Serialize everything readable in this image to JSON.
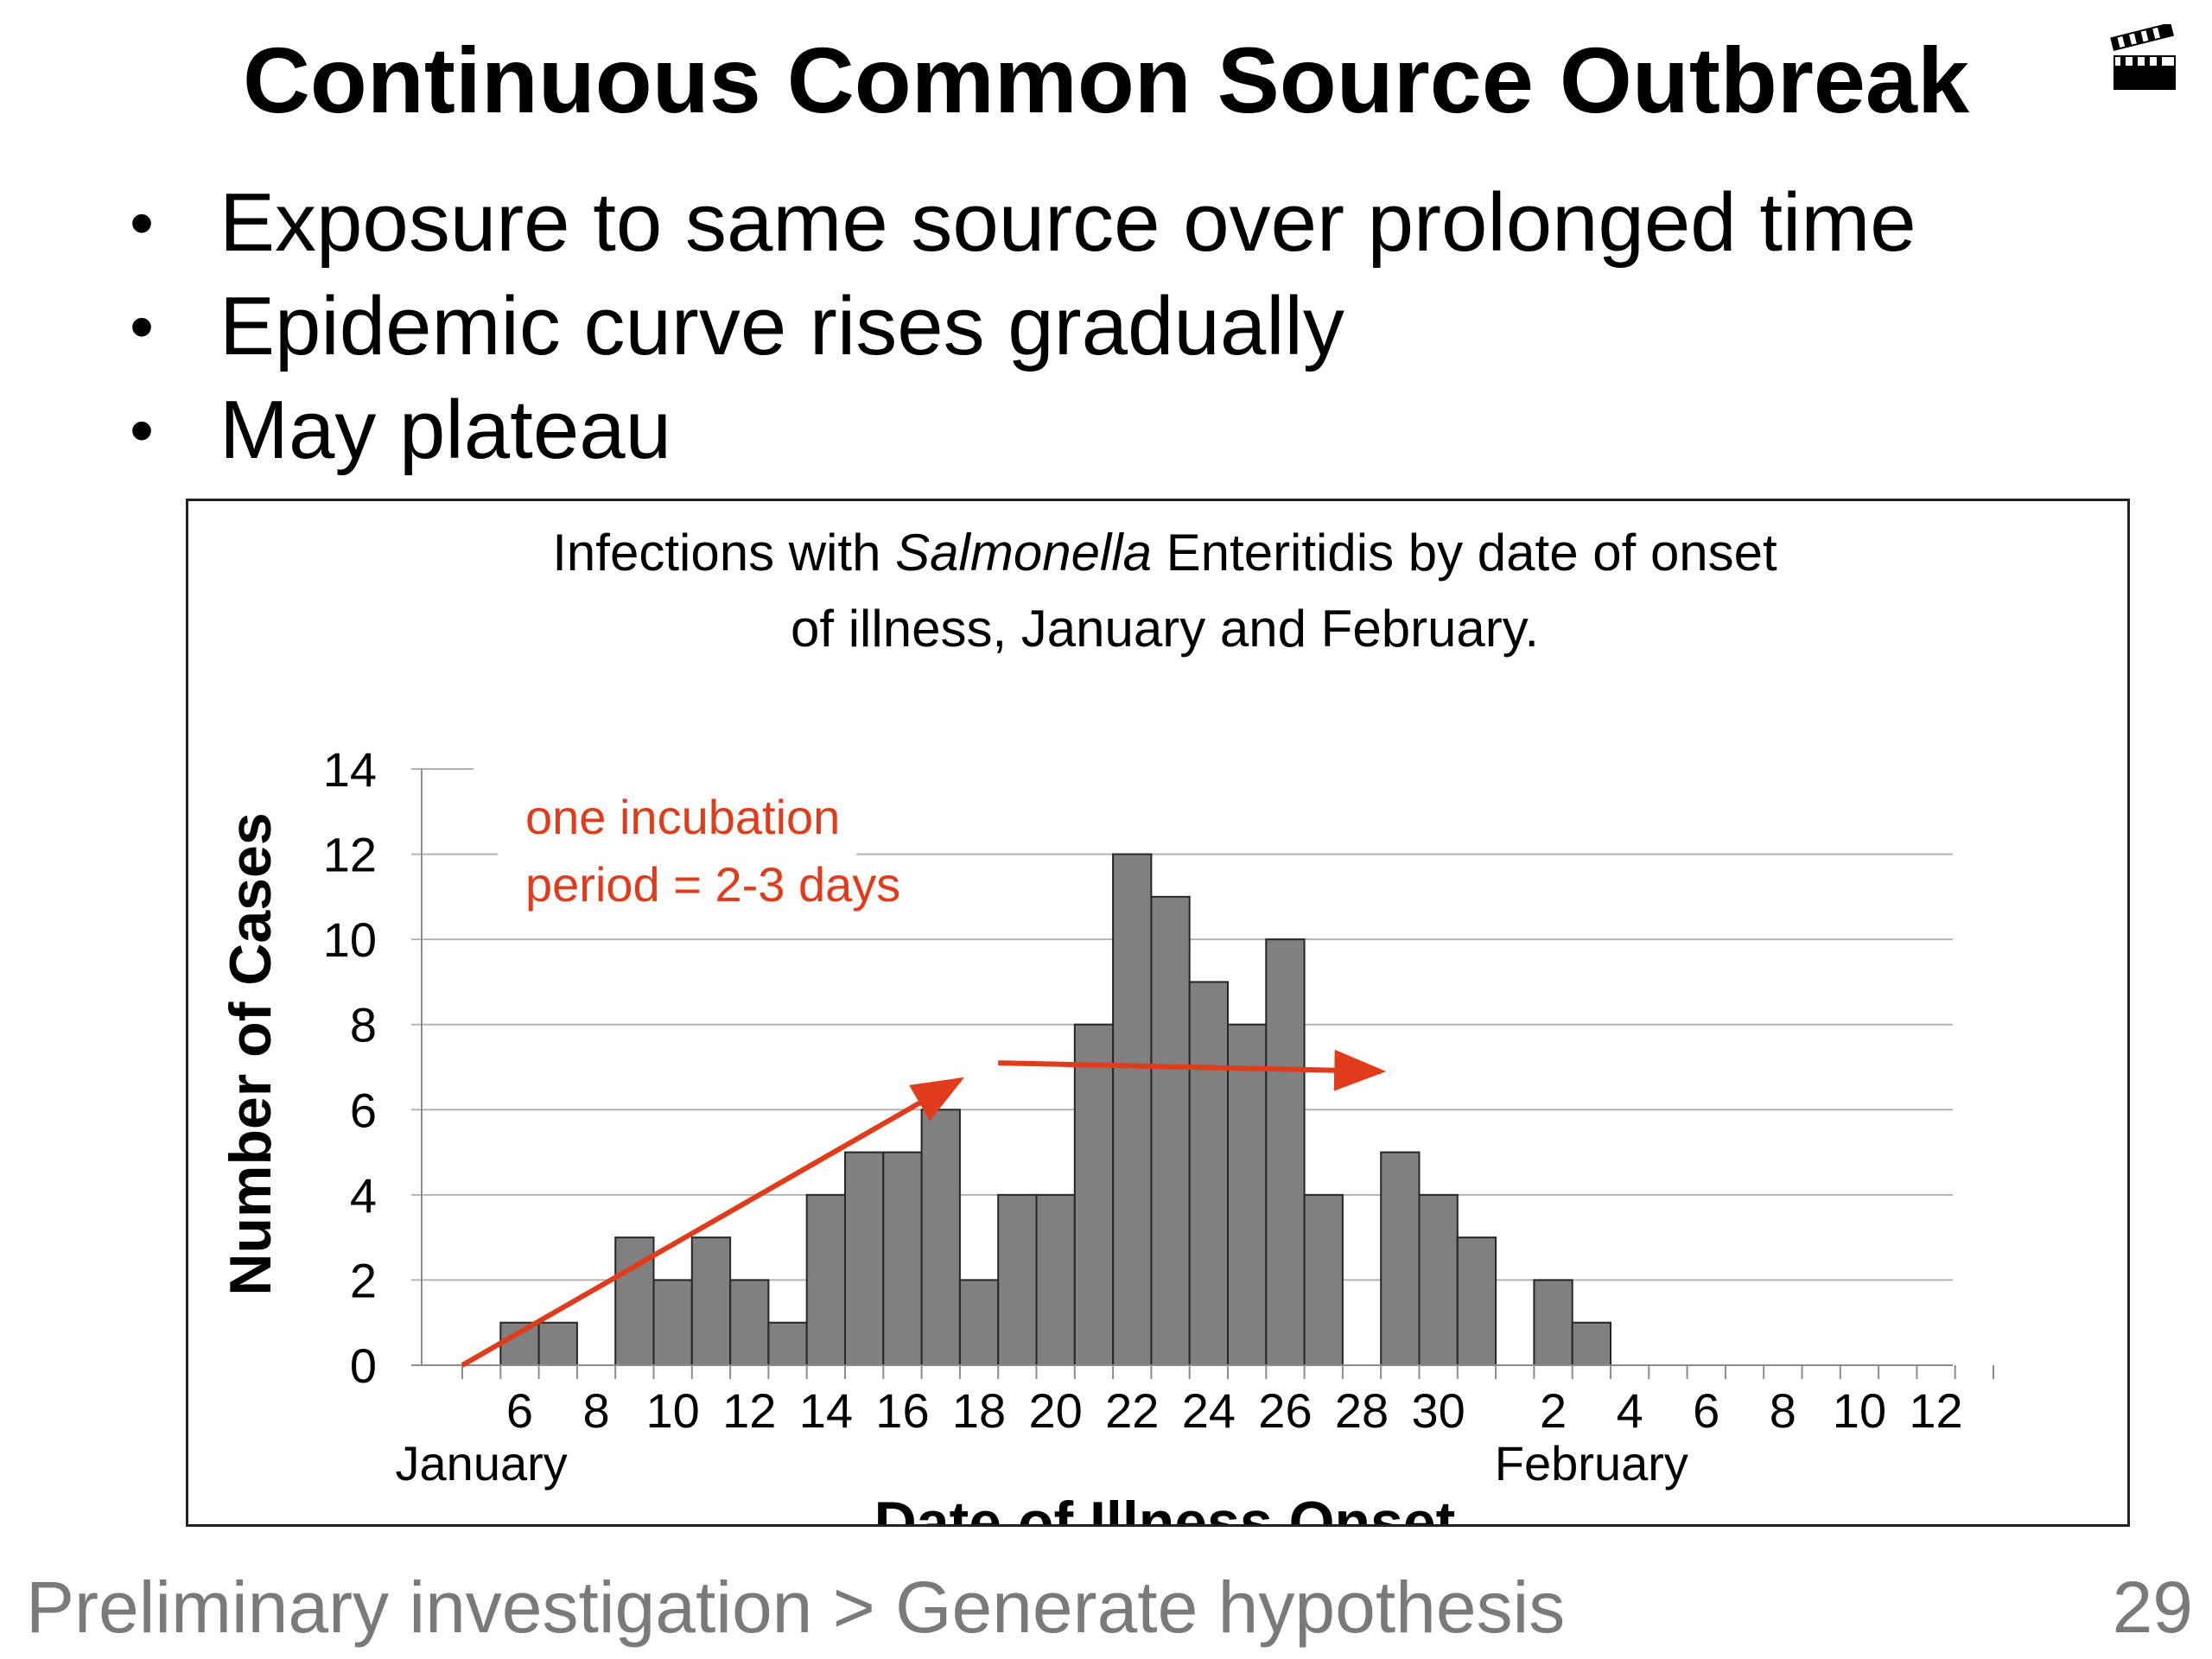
{
  "slide": {
    "title": "Continuous Common Source Outbreak",
    "bullets": [
      "Exposure to same source over prolonged time",
      "Epidemic curve rises gradually",
      "May plateau"
    ],
    "icon": "clapperboard-icon"
  },
  "footer": {
    "breadcrumb": "Preliminary investigation > Generate hypothesis",
    "page_number": "29"
  },
  "chart_data": {
    "type": "bar",
    "title_parts": [
      {
        "text": "Infections with ",
        "italic": false
      },
      {
        "text": "Salmonella",
        "italic": true
      },
      {
        "text": " Enteritidis by date of onset",
        "italic": false
      }
    ],
    "title_line2": "of illness, January and February.",
    "xlabel": "Date of Illness Onset",
    "ylabel": "Number of Cases",
    "ylim": [
      0,
      14
    ],
    "yticks": [
      "0",
      "2",
      "4",
      "6",
      "8",
      "10",
      "12",
      "14"
    ],
    "x": [
      "Jan 5",
      "Jan 6",
      "Jan 7",
      "Jan 8",
      "Jan 9",
      "Jan 10",
      "Jan 11",
      "Jan 12",
      "Jan 13",
      "Jan 14",
      "Jan 15",
      "Jan 16",
      "Jan 17",
      "Jan 18",
      "Jan 19",
      "Jan 20",
      "Jan 21",
      "Jan 22",
      "Jan 23",
      "Jan 24",
      "Jan 25",
      "Jan 26",
      "Jan 27",
      "Jan 28",
      "Jan 29",
      "Jan 30",
      "Jan 31",
      "Feb 1",
      "Feb 2",
      "Feb 3",
      "Feb 4",
      "Feb 5",
      "Feb 6",
      "Feb 7",
      "Feb 8",
      "Feb 9",
      "Feb 10",
      "Feb 11",
      "Feb 12",
      "Feb 13"
    ],
    "values": [
      0,
      1,
      1,
      0,
      3,
      2,
      3,
      2,
      1,
      4,
      5,
      5,
      6,
      2,
      4,
      4,
      8,
      12,
      11,
      9,
      8,
      10,
      4,
      0,
      5,
      4,
      3,
      0,
      2,
      1,
      0,
      0,
      0,
      0,
      0,
      0,
      0,
      0,
      0,
      0
    ],
    "xtick_labels": [
      {
        "label": "6",
        "x": "Jan 6"
      },
      {
        "label": "8",
        "x": "Jan 8"
      },
      {
        "label": "10",
        "x": "Jan 10"
      },
      {
        "label": "12",
        "x": "Jan 12"
      },
      {
        "label": "14",
        "x": "Jan 14"
      },
      {
        "label": "16",
        "x": "Jan 16"
      },
      {
        "label": "18",
        "x": "Jan 18"
      },
      {
        "label": "20",
        "x": "Jan 20"
      },
      {
        "label": "22",
        "x": "Jan 22"
      },
      {
        "label": "24",
        "x": "Jan 24"
      },
      {
        "label": "26",
        "x": "Jan 26"
      },
      {
        "label": "28",
        "x": "Jan 28"
      },
      {
        "label": "30",
        "x": "Jan 30"
      },
      {
        "label": "2",
        "x": "Feb 2"
      },
      {
        "label": "4",
        "x": "Feb 4"
      },
      {
        "label": "6",
        "x": "Feb 6"
      },
      {
        "label": "8",
        "x": "Feb 8"
      },
      {
        "label": "10",
        "x": "Feb 10"
      },
      {
        "label": "12",
        "x": "Feb 12"
      }
    ],
    "month_labels": [
      {
        "label": "January",
        "x": "Jan 5"
      },
      {
        "label": "February",
        "x": "Feb 3"
      }
    ],
    "grid": true,
    "bar_color": "#808080",
    "annotation": {
      "text_lines": [
        "one incubation",
        "period = 2-3 days"
      ],
      "color": "#e03c1c",
      "rising_arrow": {
        "from": {
          "x": "Jan 5",
          "y": 0
        },
        "to": {
          "x": "Jan 18",
          "y": 6.7
        }
      },
      "plateau_arrow": {
        "from": {
          "x": "Jan 19",
          "y": 7.1
        },
        "to": {
          "x": "Jan 29",
          "y": 6.9
        }
      }
    }
  }
}
